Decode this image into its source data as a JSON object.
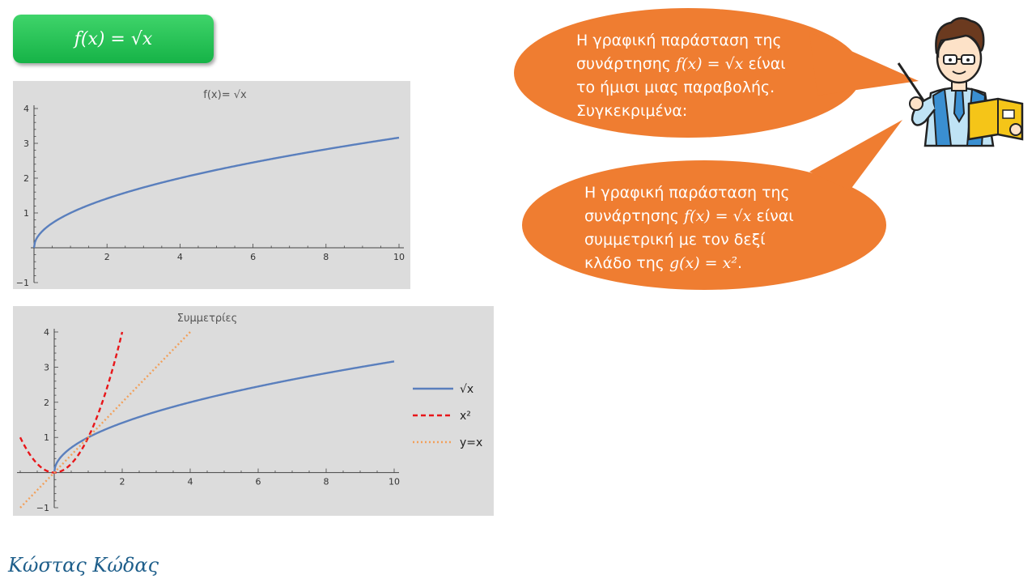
{
  "header": {
    "formula": "f(x) = √x"
  },
  "bubbles": {
    "top": {
      "line1": "Η γραφική παράσταση της",
      "line2_prefix": "συνάρτησης ",
      "line2_math": "f(x) = √x",
      "line2_suffix": " είναι",
      "line3": "το ήμισι μιας παραβολής.",
      "line4": "Συγκεκριμένα:"
    },
    "bottom": {
      "line1": "Η γραφική παράσταση της",
      "line2_prefix": "συνάρτησης ",
      "line2_math": "f(x) = √x",
      "line2_suffix": " είναι",
      "line3": "συμμετρική με τον δεξί",
      "line4_prefix": "κλάδο της ",
      "line4_math": "g(x) = x²",
      "line4_suffix": "."
    }
  },
  "author": "Κώστας Κώδας",
  "colors": {
    "bubble": "#ef7d31",
    "sqrt": "#5a7fbd",
    "square": "#e8161a",
    "identity": "#f2a05a",
    "plot_bg": "#dcdcdc",
    "header": "#22c055"
  },
  "chart_data": [
    {
      "type": "line",
      "title": "f(x)= √x",
      "xlim": [
        0,
        10
      ],
      "ylim": [
        -1,
        4
      ],
      "xticks": [
        "2",
        "4",
        "6",
        "8",
        "10"
      ],
      "yticks": [
        "−1",
        "1",
        "2",
        "3",
        "4"
      ],
      "series": [
        {
          "expr": "sqrt",
          "x": [
            0,
            0.25,
            1,
            2,
            4,
            6,
            8,
            10
          ],
          "y": [
            0,
            0.5,
            1,
            1.41,
            2,
            2.45,
            2.83,
            3.16
          ]
        }
      ]
    },
    {
      "type": "line",
      "title": "Συμμετρίες",
      "xlim": [
        -1,
        10
      ],
      "ylim": [
        -1,
        4
      ],
      "xticks": [
        "2",
        "4",
        "6",
        "8",
        "10"
      ],
      "yticks": [
        "−1",
        "1",
        "2",
        "3",
        "4"
      ],
      "legend_position": "right",
      "series": [
        {
          "name": "√x",
          "style": "solid",
          "x": [
            0,
            0.25,
            1,
            2,
            4,
            6,
            8,
            10
          ],
          "y": [
            0,
            0.5,
            1,
            1.41,
            2,
            2.45,
            2.83,
            3.16
          ]
        },
        {
          "name": "x²",
          "style": "dashed",
          "x": [
            -1,
            -0.5,
            0,
            0.5,
            1,
            1.5,
            2
          ],
          "y": [
            1,
            0.25,
            0,
            0.25,
            1,
            2.25,
            4
          ]
        },
        {
          "name": "y=x",
          "style": "dotted",
          "x": [
            -1,
            4
          ],
          "y": [
            -1,
            4
          ]
        }
      ]
    }
  ]
}
